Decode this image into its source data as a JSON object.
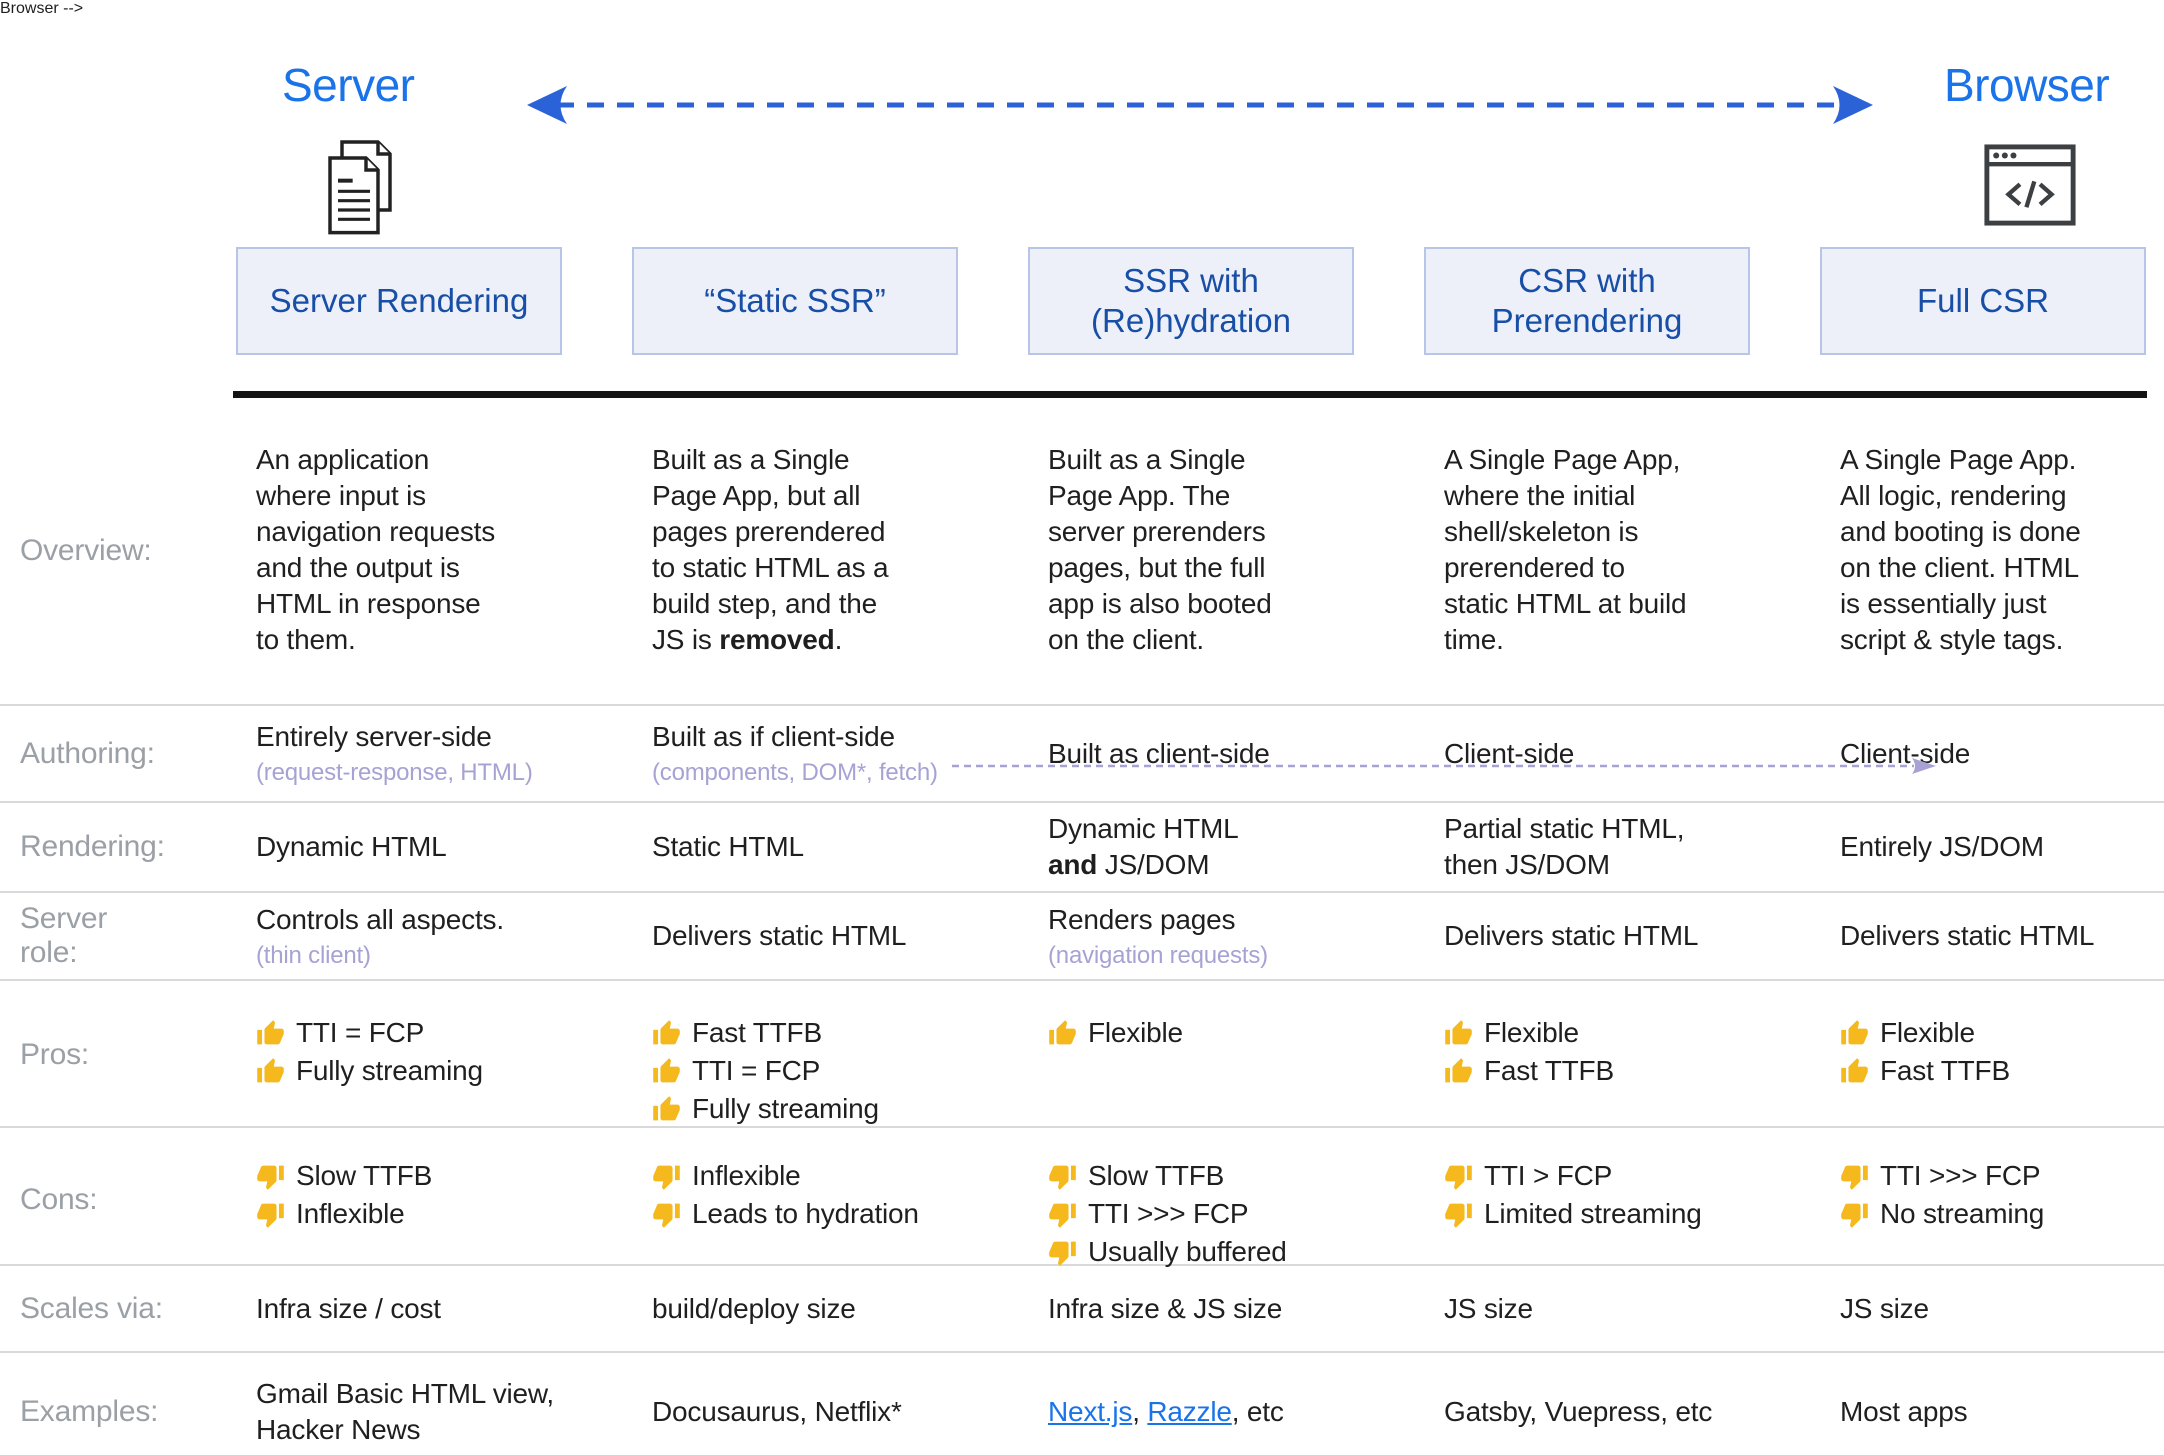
{
  "colors": {
    "label_blue": "#1a73e8",
    "axis_arrow_blue": "#2b62d8",
    "header_text_blue": "#174ea6",
    "header_fill": "#edeff9",
    "header_border": "#b6c5e8",
    "body_text": "#1f1f1f",
    "row_label_grey": "#9aa0a6",
    "subtext_lavender": "#a6a2d4",
    "link_blue": "#1a73e8",
    "thumb_yellow": "#f5b91e",
    "divider_grey": "#d9d9d9",
    "black_bar": "#141414"
  },
  "top": {
    "server_label": "Server",
    "browser_label": "Browser",
    "server_icon": "documents-icon",
    "browser_icon": "browser-window-icon",
    "axis_icon": "double-headed-dashed-arrow-icon"
  },
  "columns": [
    {
      "title": "Server Rendering"
    },
    {
      "title": "“Static SSR”"
    },
    {
      "title": "SSR with\n(Re)hydration"
    },
    {
      "title": "CSR with\nPrerendering"
    },
    {
      "title": "Full CSR"
    }
  ],
  "rows": {
    "overview": {
      "label": "Overview:",
      "cells": [
        {
          "text": "An application\nwhere input is\nnavigation requests\nand the output is\nHTML in response\nto them."
        },
        {
          "pre": "Built as a Single\nPage App, but all\npages prerendered\nto static HTML as a\nbuild step, and the\nJS is ",
          "bold": "removed",
          "post": "."
        },
        {
          "text": "Built as a Single\nPage App. The\nserver prerenders\npages, but the full\napp is also booted\non the client."
        },
        {
          "text": "A Single Page App,\nwhere the initial\nshell/skeleton is\nprerendered to\nstatic HTML at build\ntime."
        },
        {
          "text": "A Single Page App.\nAll logic, rendering\nand booting is done\non the client. HTML\nis essentially just\nscript & style tags."
        }
      ]
    },
    "authoring": {
      "label": "Authoring:",
      "cells": [
        {
          "text": "Entirely server-side",
          "sub": "(request-response, HTML)"
        },
        {
          "text": "Built as if client-side",
          "sub": "(components, DOM*, fetch)"
        },
        {
          "text": "Built as client-side"
        },
        {
          "text": "Client-side"
        },
        {
          "text": "Client-side"
        }
      ]
    },
    "rendering": {
      "label": "Rendering:",
      "cells": [
        {
          "text": "Dynamic HTML"
        },
        {
          "text": "Static HTML"
        },
        {
          "pre": "Dynamic HTML\n",
          "bold": "and",
          "post": " JS/DOM"
        },
        {
          "text": "Partial static HTML,\nthen JS/DOM"
        },
        {
          "text": "Entirely JS/DOM"
        }
      ]
    },
    "server_role": {
      "label": "Server role:",
      "cells": [
        {
          "text": "Controls all aspects.",
          "sub": "(thin client)"
        },
        {
          "text": "Delivers static HTML"
        },
        {
          "text": "Renders pages",
          "sub": "(navigation requests)"
        },
        {
          "text": "Delivers static HTML"
        },
        {
          "text": "Delivers static HTML"
        }
      ]
    },
    "pros": {
      "label": "Pros:",
      "icon": "thumbs-up-icon",
      "cells": [
        [
          "TTI = FCP",
          "Fully streaming"
        ],
        [
          "Fast TTFB",
          "TTI = FCP",
          "Fully streaming"
        ],
        [
          "Flexible"
        ],
        [
          "Flexible",
          "Fast TTFB"
        ],
        [
          "Flexible",
          "Fast TTFB"
        ]
      ]
    },
    "cons": {
      "label": "Cons:",
      "icon": "thumbs-down-icon",
      "cells": [
        [
          "Slow TTFB",
          "Inflexible"
        ],
        [
          "Inflexible",
          "Leads to hydration"
        ],
        [
          "Slow TTFB",
          "TTI >>> FCP",
          "Usually buffered"
        ],
        [
          "TTI > FCP",
          "Limited streaming"
        ],
        [
          "TTI >>> FCP",
          "No streaming"
        ]
      ]
    },
    "scales": {
      "label": "Scales via:",
      "cells": [
        {
          "text": "Infra size / cost"
        },
        {
          "text": "build/deploy size"
        },
        {
          "text": "Infra size & JS size"
        },
        {
          "text": "JS size"
        },
        {
          "text": "JS size"
        }
      ]
    },
    "examples": {
      "label": "Examples:",
      "cells": [
        {
          "text": "Gmail Basic HTML view,\nHacker News"
        },
        {
          "text": "Docusaurus, Netflix*"
        },
        {
          "link1": "Next.js",
          "sep1": ", ",
          "link2": "Razzle",
          "tail": ", etc"
        },
        {
          "text": "Gatsby, Vuepress, etc"
        },
        {
          "text": "Most apps"
        }
      ]
    }
  }
}
